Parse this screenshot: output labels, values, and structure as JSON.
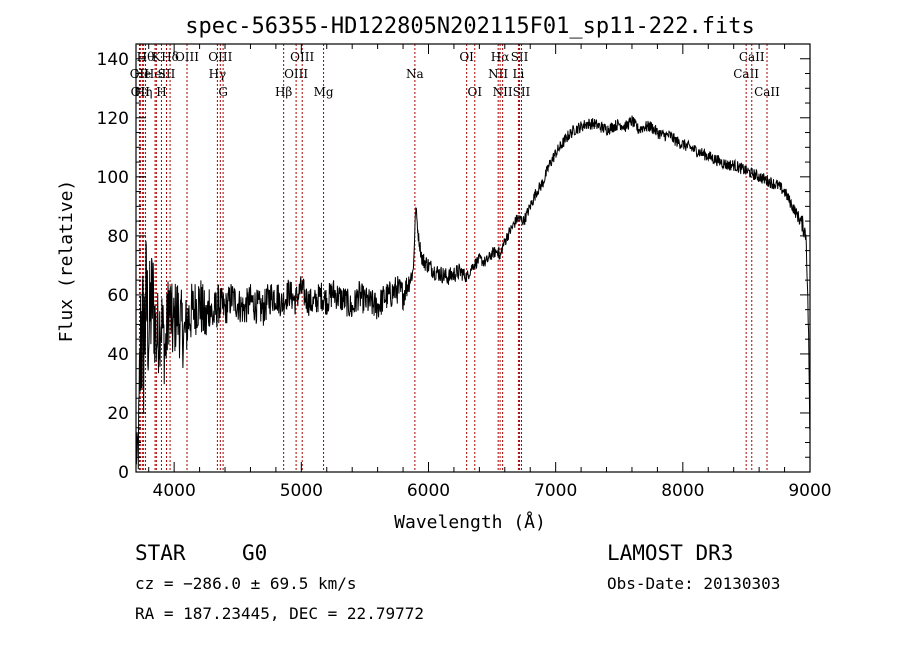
{
  "chart_data": {
    "type": "line",
    "title": "spec-56355-HD122805N202115F01_sp11-222.fits",
    "xlabel": "Wavelength (Å)",
    "ylabel": "Flux (relative)",
    "xlim": [
      3700,
      9000
    ],
    "ylim": [
      0,
      145
    ],
    "xticks": [
      4000,
      5000,
      6000,
      7000,
      8000,
      9000
    ],
    "yticks": [
      0,
      20,
      40,
      60,
      80,
      100,
      120,
      140
    ],
    "grid": false,
    "series_color": "#000000",
    "line_marker_color": "#aa0000",
    "spectrum": {
      "x": [
        3700,
        3720,
        3740,
        3760,
        3780,
        3800,
        3830,
        3860,
        3900,
        3930,
        3960,
        3990,
        4020,
        4050,
        4080,
        4110,
        4150,
        4200,
        4250,
        4280,
        4300,
        4350,
        4400,
        4450,
        4500,
        4550,
        4600,
        4650,
        4700,
        4750,
        4800,
        4850,
        4900,
        4950,
        5000,
        5050,
        5100,
        5150,
        5200,
        5250,
        5300,
        5350,
        5400,
        5450,
        5500,
        5550,
        5600,
        5650,
        5700,
        5750,
        5800,
        5850,
        5880,
        5900,
        5920,
        5950,
        6000,
        6050,
        6100,
        6150,
        6200,
        6250,
        6300,
        6350,
        6400,
        6450,
        6500,
        6550,
        6562,
        6580,
        6620,
        6700,
        6750,
        6800,
        6850,
        6900,
        6950,
        7000,
        7050,
        7100,
        7150,
        7200,
        7250,
        7300,
        7350,
        7400,
        7450,
        7500,
        7550,
        7600,
        7650,
        7700,
        7750,
        7800,
        7850,
        7900,
        7950,
        8000,
        8050,
        8100,
        8150,
        8200,
        8250,
        8300,
        8350,
        8400,
        8450,
        8500,
        8550,
        8600,
        8650,
        8700,
        8750,
        8800,
        8850,
        8900,
        8940,
        8970,
        8990,
        9000
      ],
      "y": [
        3,
        10,
        50,
        42,
        58,
        48,
        60,
        45,
        52,
        40,
        58,
        48,
        55,
        50,
        46,
        52,
        55,
        58,
        50,
        58,
        52,
        57,
        55,
        59,
        57,
        55,
        58,
        56,
        55,
        59,
        60,
        57,
        61,
        58,
        62,
        58,
        57,
        60,
        58,
        61,
        59,
        58,
        55,
        60,
        58,
        57,
        56,
        59,
        60,
        62,
        60,
        65,
        68,
        90,
        80,
        72,
        70,
        68,
        67,
        66,
        67,
        68,
        66,
        70,
        72,
        71,
        74,
        75,
        72,
        76,
        80,
        86,
        85,
        90,
        95,
        98,
        104,
        108,
        111,
        114,
        116,
        117,
        118,
        118,
        117,
        116,
        117,
        118,
        117,
        119,
        116,
        117,
        117,
        115,
        114,
        114,
        112,
        111,
        110,
        109,
        108,
        107,
        106,
        105,
        104,
        104,
        103,
        102,
        101,
        100,
        99,
        98,
        97,
        95,
        91,
        87,
        84,
        80,
        45,
        5
      ],
      "noise_amplitude": [
        2,
        14,
        34,
        28,
        26,
        22,
        20,
        16,
        14,
        14,
        14,
        13,
        13,
        13,
        12,
        11,
        10,
        10,
        10,
        9,
        8,
        7,
        6,
        6,
        6,
        6,
        6,
        6,
        6,
        6,
        6,
        5,
        5,
        5,
        5,
        5,
        5,
        5,
        5,
        5,
        5,
        5,
        5,
        5,
        5,
        5,
        5,
        5,
        5,
        5,
        5,
        4,
        3,
        2,
        2,
        3,
        3,
        3,
        3,
        3,
        3,
        3,
        2,
        2,
        2,
        2,
        2,
        2,
        3,
        2,
        2,
        2,
        2,
        2,
        2,
        2,
        2,
        2,
        2,
        2,
        2,
        2,
        2,
        2,
        2,
        2,
        2,
        2,
        2,
        2,
        2,
        2,
        2,
        2,
        2,
        2,
        2,
        2,
        2,
        2,
        2,
        2,
        2,
        2,
        2,
        2,
        2,
        2,
        2,
        2,
        2,
        2,
        2,
        2,
        2,
        2,
        3,
        3,
        3,
        2
      ]
    },
    "lines": [
      {
        "x": 3727,
        "row": 2,
        "label": "OII"
      },
      {
        "x": 3734,
        "row": 3,
        "label": "OII"
      },
      {
        "x": 3750,
        "row": 2,
        "label": "He"
      },
      {
        "x": 3760,
        "row": 3,
        "label": "Hη"
      },
      {
        "x": 3775,
        "row": 1,
        "label": "Hθ"
      },
      {
        "x": 3850,
        "row": 2,
        "label": "HeI"
      },
      {
        "x": 3860,
        "row": 1,
        "label": "K"
      },
      {
        "x": 3900,
        "row": 3,
        "label": "H"
      },
      {
        "x": 3940,
        "row": 2,
        "label": "SII"
      },
      {
        "x": 3968,
        "row": 1,
        "label": "Hδ"
      },
      {
        "x": 4101,
        "row": 1,
        "label": "OIII"
      },
      {
        "x": 4340,
        "row": 2,
        "label": "Hγ"
      },
      {
        "x": 4363,
        "row": 1,
        "label": "OIII"
      },
      {
        "x": 4385,
        "row": 3,
        "label": "G"
      },
      {
        "x": 4861,
        "row": 3,
        "label": "Hβ"
      },
      {
        "x": 4959,
        "row": 2,
        "label": "OIII"
      },
      {
        "x": 5007,
        "row": 1,
        "label": "OIII"
      },
      {
        "x": 5175,
        "row": 3,
        "label": "Mg"
      },
      {
        "x": 5893,
        "row": 2,
        "label": "Na"
      },
      {
        "x": 6300,
        "row": 1,
        "label": "OI"
      },
      {
        "x": 6364,
        "row": 3,
        "label": "OI"
      },
      {
        "x": 6548,
        "row": 2,
        "label": "NII"
      },
      {
        "x": 6563,
        "row": 1,
        "label": "Hα"
      },
      {
        "x": 6583,
        "row": 3,
        "label": "NII"
      },
      {
        "x": 6707,
        "row": 2,
        "label": "Li"
      },
      {
        "x": 6716,
        "row": 1,
        "label": "SII"
      },
      {
        "x": 6731,
        "row": 3,
        "label": "SII"
      },
      {
        "x": 8498,
        "row": 2,
        "label": "CaII"
      },
      {
        "x": 8542,
        "row": 1,
        "label": "CaII"
      },
      {
        "x": 8662,
        "row": 3,
        "label": "CaII"
      }
    ]
  },
  "info": {
    "class": "STAR",
    "subclass": "G0",
    "survey": "LAMOST DR3",
    "cz": "cz = −286.0 ± 69.5 km/s",
    "obs_date": "Obs-Date: 20130303",
    "coords": "RA = 187.23445, DEC =  22.79772"
  }
}
